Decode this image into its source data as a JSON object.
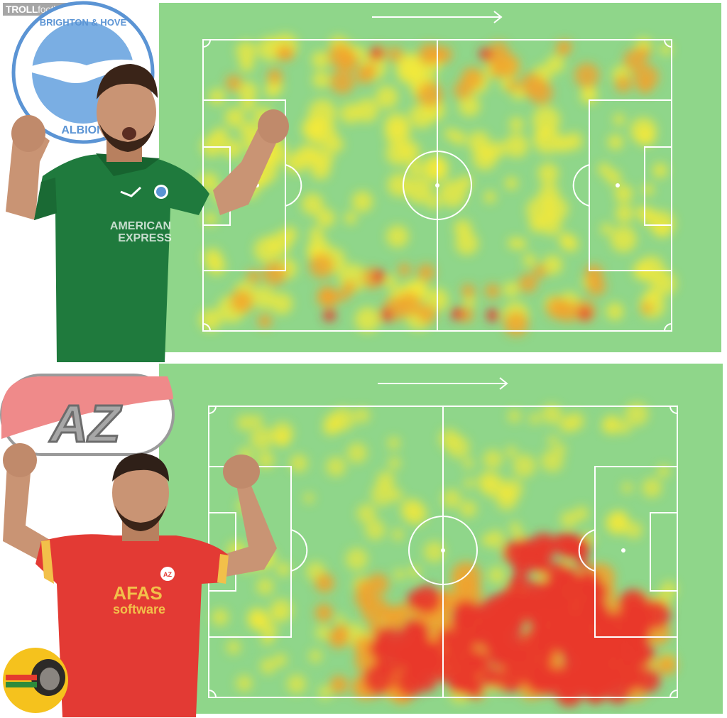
{
  "watermark": {
    "brand": "TROLL",
    "rest": "football.me"
  },
  "top": {
    "club_badge": {
      "ring_text_top": "BRIGHTON & HOVE",
      "ring_text_bottom": "ALBION"
    },
    "shirt_sponsor_line1": "AMERICAN",
    "shirt_sponsor_line2": "EXPRESS",
    "shirt_color": "#1f7a3d",
    "heatmap_intensity": "spread"
  },
  "bottom": {
    "club_logo_text": "AZ",
    "shirt_sponsor_line1": "AFAS",
    "shirt_sponsor_line2": "software",
    "chest_badge": "AZ",
    "shirt_color": "#e33a34",
    "heatmap_intensity": "concentrated-right-bottom"
  },
  "colors": {
    "pitch": "#8fd68a",
    "lines": "#ffffff",
    "heat_low": "#f3e83a",
    "heat_mid": "#f2a12b",
    "heat_high": "#e8392b"
  }
}
